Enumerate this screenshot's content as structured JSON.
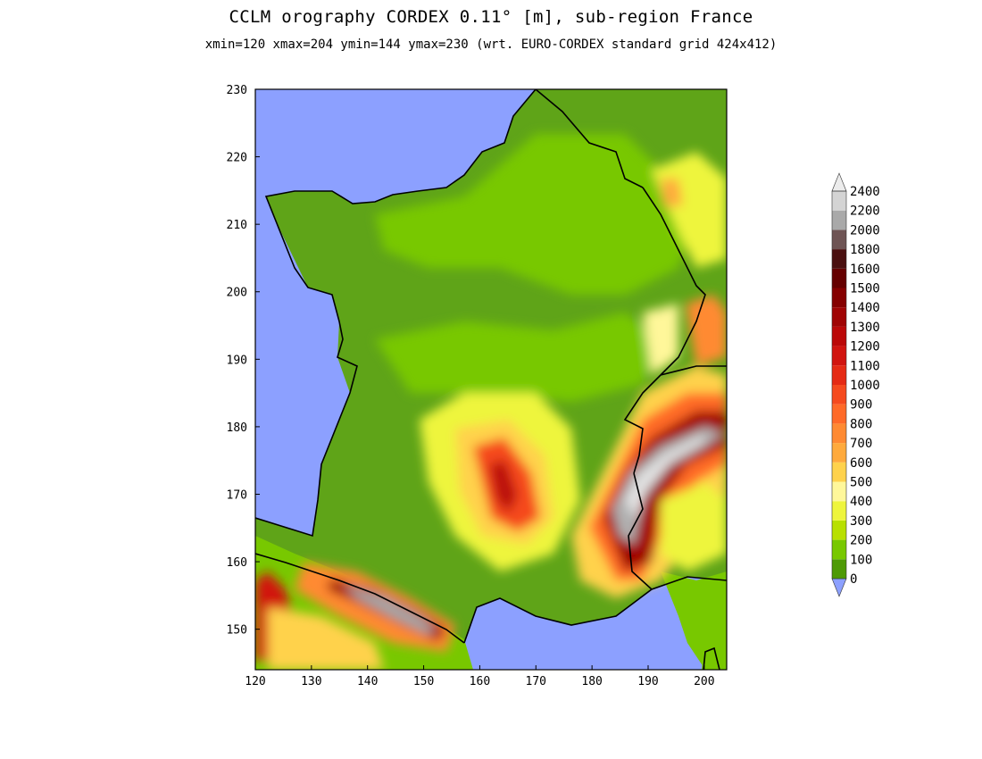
{
  "title": "CCLM orography CORDEX 0.11° [m], sub-region France",
  "subtitle": "xmin=120 xmax=204 ymin=144 ymax=230 (wrt. EURO-CORDEX standard grid 424x412)",
  "map": {
    "xlim": [
      120,
      204
    ],
    "ylim": [
      144,
      230
    ],
    "x_ticks": [
      120,
      130,
      140,
      150,
      160,
      170,
      180,
      190,
      200
    ],
    "y_ticks": [
      150,
      160,
      170,
      180,
      190,
      200,
      210,
      220,
      230
    ],
    "ocean_color": "#8ca0ff",
    "coastline_color": "#000000"
  },
  "colorbar": {
    "levels": [
      "0",
      "100",
      "200",
      "300",
      "400",
      "500",
      "600",
      "700",
      "800",
      "900",
      "1000",
      "1100",
      "1200",
      "1300",
      "1400",
      "1500",
      "1600",
      "1800",
      "2000",
      "2200",
      "2400"
    ],
    "colors": [
      "#8ca0ff",
      "#4e9a06",
      "#78c800",
      "#b8e000",
      "#eef53c",
      "#fff79a",
      "#ffd24c",
      "#ffaa3c",
      "#ff8a32",
      "#ff6a28",
      "#f54a1e",
      "#e52a14",
      "#d1140f",
      "#bb0808",
      "#a00404",
      "#850000",
      "#650000",
      "#4a1010",
      "#6e5454",
      "#a9a9a9",
      "#d4d4d4",
      "#ececec"
    ]
  }
}
